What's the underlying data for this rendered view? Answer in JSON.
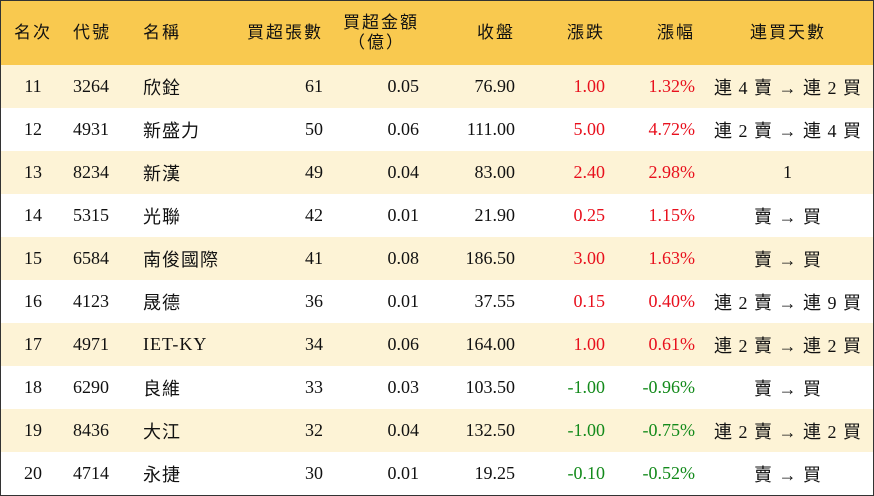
{
  "headers": {
    "rank": "名次",
    "code": "代號",
    "name": "名稱",
    "lots": "買超張數",
    "amount_line1": "買超金額",
    "amount_line2": "（億）",
    "close": "收盤",
    "change": "漲跌",
    "pct": "漲幅",
    "streak": "連買天數"
  },
  "colors": {
    "header_bg": "#f9c94f",
    "stripe_bg": "#fdf3d6",
    "up": "#e8101d",
    "down": "#138a1b"
  },
  "rows": [
    {
      "rank": "11",
      "code": "3264",
      "name": "欣銓",
      "lots": "61",
      "amount": "0.05",
      "close": "76.90",
      "change": "1.00",
      "pct": "1.32%",
      "dir": "up",
      "streak": "連 4 賣 → 連 2 買"
    },
    {
      "rank": "12",
      "code": "4931",
      "name": "新盛力",
      "lots": "50",
      "amount": "0.06",
      "close": "111.00",
      "change": "5.00",
      "pct": "4.72%",
      "dir": "up",
      "streak": "連 2 賣 → 連 4 買"
    },
    {
      "rank": "13",
      "code": "8234",
      "name": "新漢",
      "lots": "49",
      "amount": "0.04",
      "close": "83.00",
      "change": "2.40",
      "pct": "2.98%",
      "dir": "up",
      "streak": "1"
    },
    {
      "rank": "14",
      "code": "5315",
      "name": "光聯",
      "lots": "42",
      "amount": "0.01",
      "close": "21.90",
      "change": "0.25",
      "pct": "1.15%",
      "dir": "up",
      "streak": "賣 → 買"
    },
    {
      "rank": "15",
      "code": "6584",
      "name": "南俊國際",
      "lots": "41",
      "amount": "0.08",
      "close": "186.50",
      "change": "3.00",
      "pct": "1.63%",
      "dir": "up",
      "streak": "賣 → 買"
    },
    {
      "rank": "16",
      "code": "4123",
      "name": "晟德",
      "lots": "36",
      "amount": "0.01",
      "close": "37.55",
      "change": "0.15",
      "pct": "0.40%",
      "dir": "up",
      "streak": "連 2 賣 → 連 9 買"
    },
    {
      "rank": "17",
      "code": "4971",
      "name": "IET-KY",
      "lots": "34",
      "amount": "0.06",
      "close": "164.00",
      "change": "1.00",
      "pct": "0.61%",
      "dir": "up",
      "streak": "連 2 賣 → 連 2 買"
    },
    {
      "rank": "18",
      "code": "6290",
      "name": "良維",
      "lots": "33",
      "amount": "0.03",
      "close": "103.50",
      "change": "-1.00",
      "pct": "-0.96%",
      "dir": "down",
      "streak": "賣 → 買"
    },
    {
      "rank": "19",
      "code": "8436",
      "name": "大江",
      "lots": "32",
      "amount": "0.04",
      "close": "132.50",
      "change": "-1.00",
      "pct": "-0.75%",
      "dir": "down",
      "streak": "連 2 賣 → 連 2 買"
    },
    {
      "rank": "20",
      "code": "4714",
      "name": "永捷",
      "lots": "30",
      "amount": "0.01",
      "close": "19.25",
      "change": "-0.10",
      "pct": "-0.52%",
      "dir": "down",
      "streak": "賣 → 買"
    }
  ]
}
